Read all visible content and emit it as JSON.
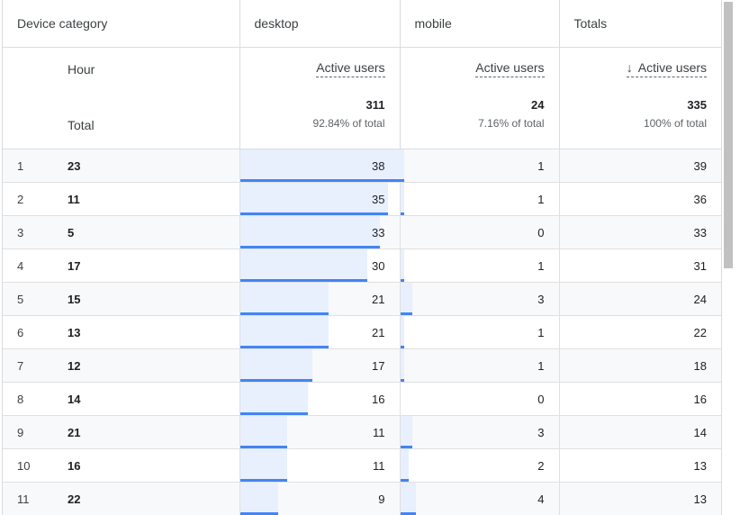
{
  "header": {
    "dimension": "Device category",
    "groups": [
      "desktop",
      "mobile",
      "Totals"
    ],
    "hour_label": "Hour",
    "total_label": "Total",
    "metric_label": "Active users",
    "sort_arrow": "↓"
  },
  "totals": {
    "desktop": {
      "value": "311",
      "pct": "92.84% of total"
    },
    "mobile": {
      "value": "24",
      "pct": "7.16% of total"
    },
    "all": {
      "value": "335",
      "pct": "100% of total"
    }
  },
  "rows": [
    {
      "idx": "1",
      "hour": "23",
      "desktop": "38",
      "mobile": "1",
      "total": "39"
    },
    {
      "idx": "2",
      "hour": "11",
      "desktop": "35",
      "mobile": "1",
      "total": "36"
    },
    {
      "idx": "3",
      "hour": "5",
      "desktop": "33",
      "mobile": "0",
      "total": "33"
    },
    {
      "idx": "4",
      "hour": "17",
      "desktop": "30",
      "mobile": "1",
      "total": "31"
    },
    {
      "idx": "5",
      "hour": "15",
      "desktop": "21",
      "mobile": "3",
      "total": "24"
    },
    {
      "idx": "6",
      "hour": "13",
      "desktop": "21",
      "mobile": "1",
      "total": "22"
    },
    {
      "idx": "7",
      "hour": "12",
      "desktop": "17",
      "mobile": "1",
      "total": "18"
    },
    {
      "idx": "8",
      "hour": "14",
      "desktop": "16",
      "mobile": "0",
      "total": "16"
    },
    {
      "idx": "9",
      "hour": "21",
      "desktop": "11",
      "mobile": "3",
      "total": "14"
    },
    {
      "idx": "10",
      "hour": "16",
      "desktop": "11",
      "mobile": "2",
      "total": "13"
    },
    {
      "idx": "11",
      "hour": "22",
      "desktop": "9",
      "mobile": "4",
      "total": "13"
    }
  ],
  "colors": {
    "bar_fill": "#e8f0fe",
    "bar_line": "#4285f4",
    "border": "#dadce0",
    "alt_row": "#f8f9fa"
  }
}
